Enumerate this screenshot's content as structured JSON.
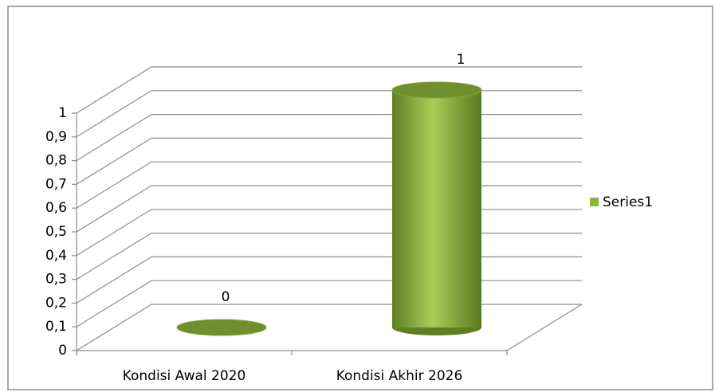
{
  "chart_data": {
    "type": "bar3d",
    "categories": [
      "Kondisi Awal 2020",
      "Kondisi Akhir 2026"
    ],
    "series": [
      {
        "name": "Series1",
        "color": "#8db53a",
        "values": [
          0,
          1
        ]
      }
    ],
    "ylim": [
      0,
      1
    ],
    "yticks": [
      0,
      {
        "value": 0.1,
        "label": "0,1"
      },
      {
        "value": 0.2,
        "label": "0,2"
      },
      {
        "value": 0.3,
        "label": "0,3"
      },
      {
        "value": 0.4,
        "label": "0,4"
      },
      {
        "value": 0.5,
        "label": "0,5"
      },
      {
        "value": 0.6,
        "label": "0,6"
      },
      {
        "value": 0.7,
        "label": "0,7"
      },
      {
        "value": 0.8,
        "label": "0,8"
      },
      {
        "value": 0.9,
        "label": "0,9"
      },
      1
    ],
    "grid": true,
    "legend": "right"
  }
}
